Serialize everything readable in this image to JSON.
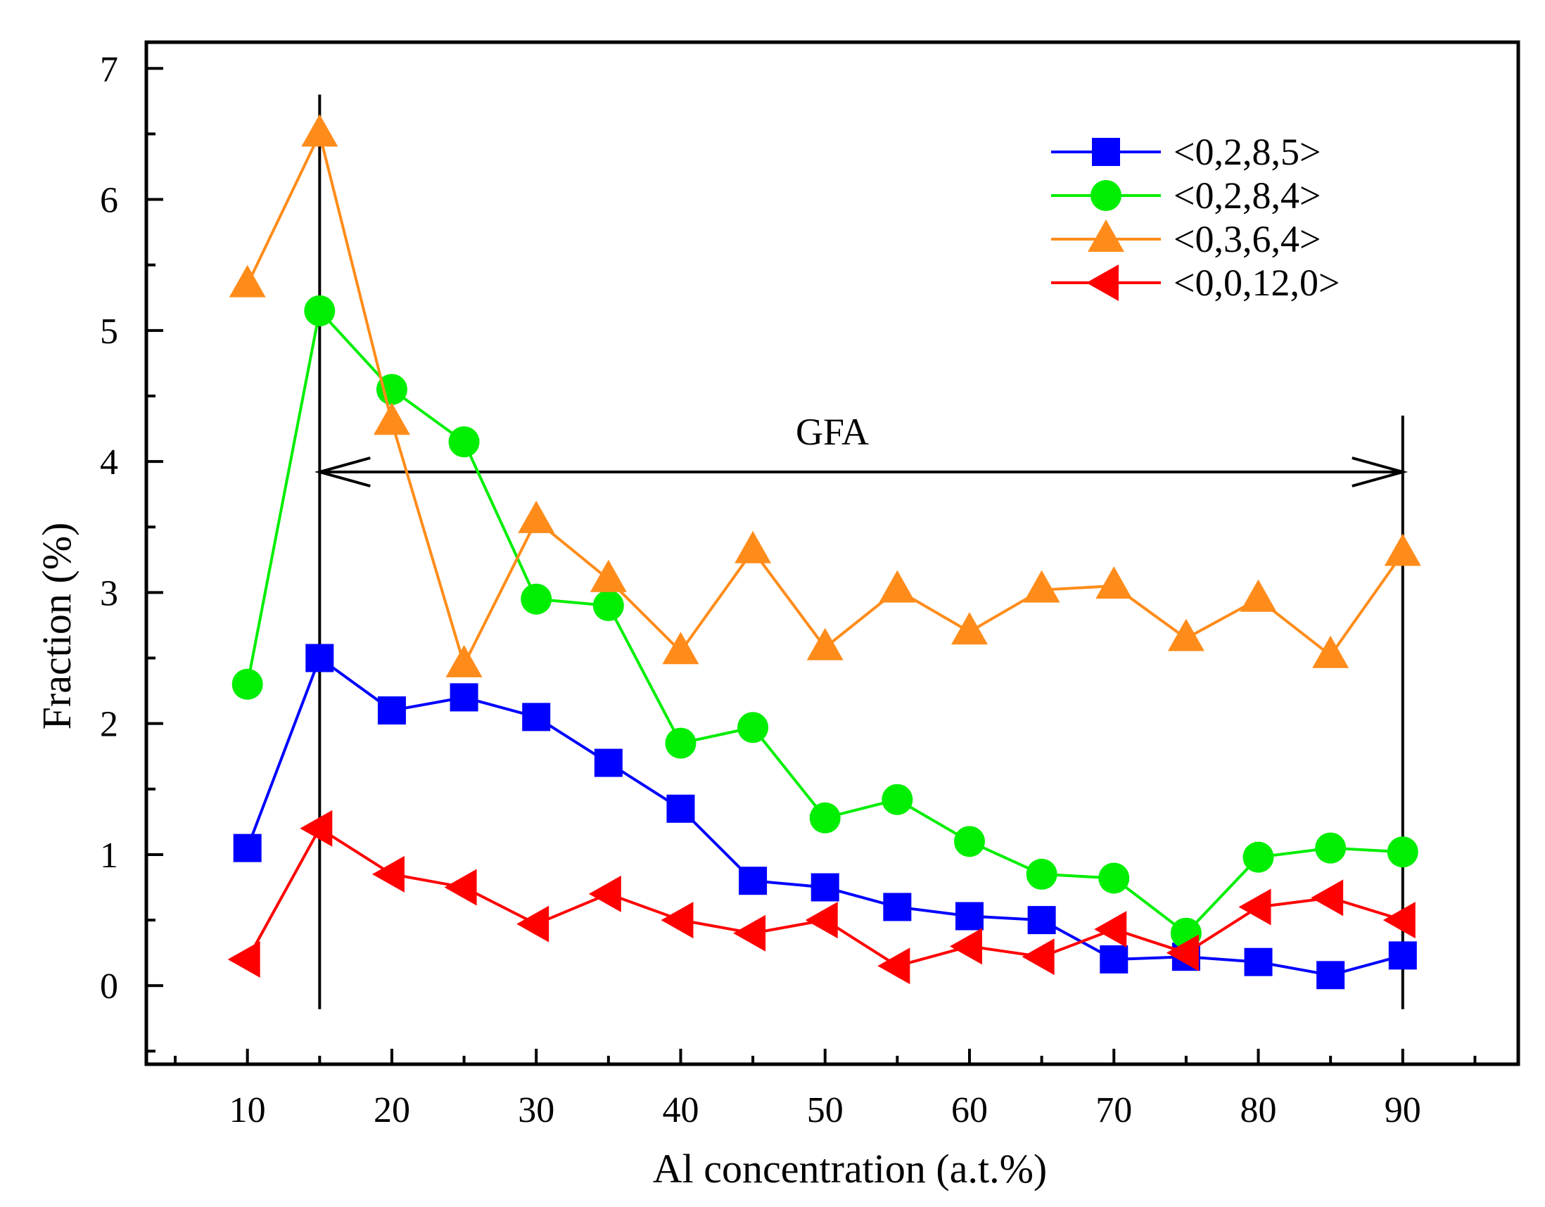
{
  "chart_data": {
    "type": "line",
    "title": "",
    "xlabel": "Al concentration (a.t.%)",
    "ylabel": "Fraction (%)",
    "xlim": [
      3,
      98
    ],
    "ylim": [
      -0.6,
      7.2
    ],
    "x_ticks": [
      10,
      20,
      30,
      40,
      50,
      60,
      70,
      80,
      90
    ],
    "x_tick_labels": [
      "10",
      "20",
      "30",
      "40",
      "50",
      "60",
      "70",
      "80",
      "90"
    ],
    "y_ticks": [
      0,
      1,
      2,
      3,
      4,
      5,
      6,
      7
    ],
    "y_tick_labels": [
      "0",
      "1",
      "2",
      "3",
      "4",
      "5",
      "6",
      "7"
    ],
    "x_minor_ticks": [
      5,
      15,
      25,
      35,
      45,
      55,
      65,
      75,
      85,
      95
    ],
    "y_minor_ticks": [
      -0.5,
      0.5,
      1.5,
      2.5,
      3.5,
      4.5,
      5.5,
      6.5
    ],
    "grid": false,
    "legend_position": "top-right",
    "x": [
      10,
      15,
      20,
      25,
      30,
      35,
      40,
      45,
      50,
      55,
      60,
      65,
      70,
      75,
      80,
      85,
      90
    ],
    "series": [
      {
        "name": "<0,2,8,5>",
        "color": "#0000ff",
        "marker": "square",
        "values": [
          1.05,
          2.5,
          2.1,
          2.2,
          2.05,
          1.7,
          1.35,
          0.8,
          0.75,
          0.6,
          0.53,
          0.5,
          0.2,
          0.22,
          0.18,
          0.08,
          0.23
        ]
      },
      {
        "name": "<0,2,8,4>",
        "color": "#00ee00",
        "marker": "circle",
        "values": [
          2.3,
          5.15,
          4.55,
          4.15,
          2.95,
          2.9,
          1.85,
          1.97,
          1.28,
          1.42,
          1.1,
          0.85,
          0.82,
          0.4,
          0.98,
          1.05,
          1.02
        ]
      },
      {
        "name": "<0,3,6,4>",
        "color": "#ff8c1a",
        "marker": "triangle-up",
        "values": [
          5.35,
          6.5,
          4.3,
          2.45,
          3.55,
          3.1,
          2.55,
          3.32,
          2.58,
          3.02,
          2.7,
          3.02,
          3.05,
          2.65,
          2.95,
          2.52,
          3.3
        ]
      },
      {
        "name": "<0,0,12,0>",
        "color": "#ff0000",
        "marker": "triangle-left",
        "values": [
          0.2,
          1.2,
          0.85,
          0.75,
          0.47,
          0.7,
          0.5,
          0.4,
          0.5,
          0.15,
          0.3,
          0.22,
          0.43,
          0.25,
          0.6,
          0.67,
          0.5
        ]
      }
    ],
    "annotations": {
      "vertical_lines": [
        {
          "x": 15,
          "y_from": -0.18,
          "y_to": 6.8
        },
        {
          "x": 90,
          "y_from": -0.18,
          "y_to": 4.35
        }
      ],
      "gfa_arrow": {
        "label": "GFA",
        "x_from": 15,
        "x_to": 90,
        "y": 3.92
      }
    }
  }
}
